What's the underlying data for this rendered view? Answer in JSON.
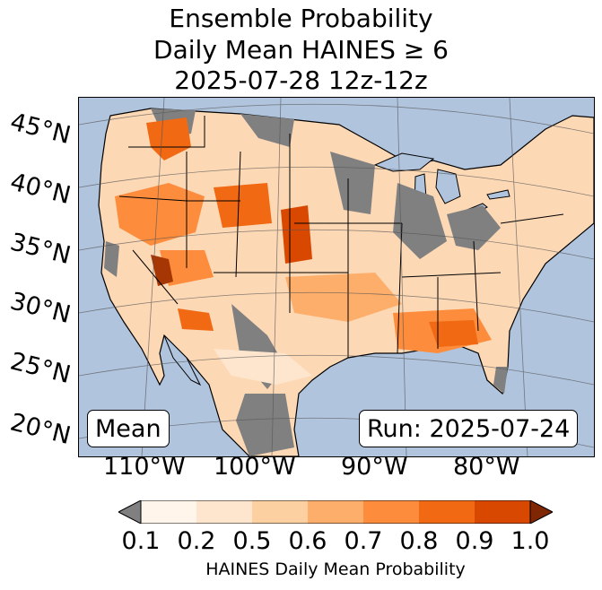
{
  "title": {
    "line1": "Ensemble Probability",
    "line2": "Daily Mean HAINES ≥ 6",
    "line3": "2025-07-28 12z-12z"
  },
  "map": {
    "region": "Contiguous United States",
    "lat_labels": [
      "45°N",
      "40°N",
      "35°N",
      "30°N",
      "25°N",
      "20°N"
    ],
    "lon_labels": [
      "110°W",
      "100°W",
      "90°W",
      "80°W"
    ],
    "ocean_color": "#b0c4de",
    "no_data_color": "#808080",
    "land_low_color": "#fff5eb"
  },
  "annotations": {
    "stat_label": "Mean",
    "run_label": "Run: 2025-07-24"
  },
  "colorbar": {
    "ticks": [
      "0.1",
      "0.2",
      "0.5",
      "0.6",
      "0.7",
      "0.8",
      "0.9",
      "1.0"
    ],
    "colors": [
      "#fff5eb",
      "#fee6ce",
      "#fdd0a2",
      "#fdae6b",
      "#fd8d3c",
      "#f16913",
      "#d94801",
      "#a63603"
    ],
    "under_color": "#808080",
    "over_color": "#7f2704",
    "label": "HAINES Daily Mean Probability"
  }
}
